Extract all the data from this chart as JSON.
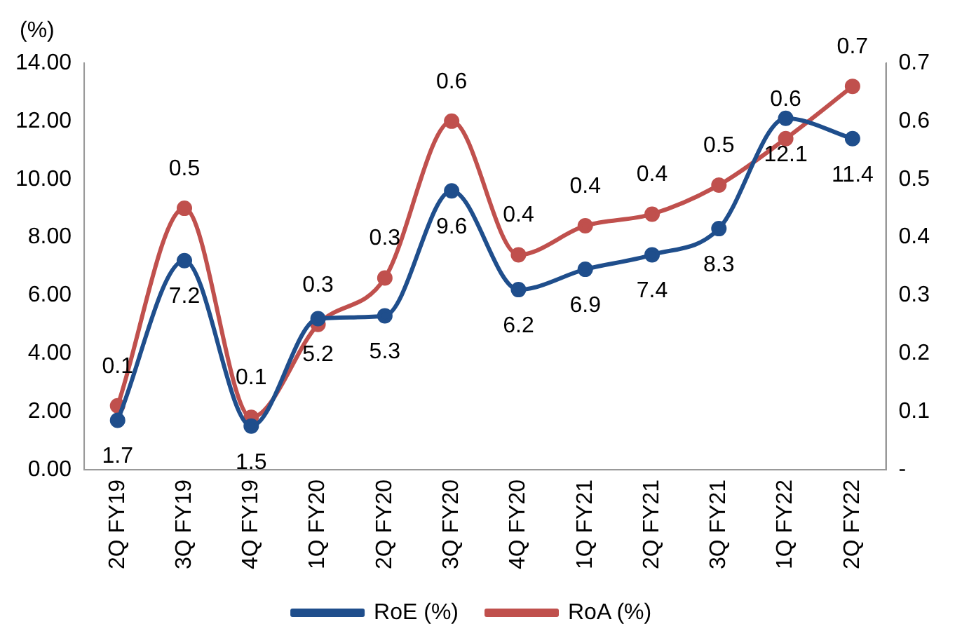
{
  "chart_data": {
    "type": "line",
    "ylabel": "(%)",
    "categories": [
      "2Q FY19",
      "3Q FY19",
      "4Q FY19",
      "1Q FY20",
      "2Q FY20",
      "3Q FY20",
      "4Q FY20",
      "1Q FY21",
      "2Q FY21",
      "3Q FY21",
      "1Q FY22",
      "2Q FY22"
    ],
    "series": [
      {
        "name": "RoE (%)",
        "color": "#1f4e8c",
        "values": [
          1.7,
          7.2,
          1.5,
          5.2,
          5.3,
          9.6,
          6.2,
          6.9,
          7.4,
          8.3,
          12.1,
          11.4
        ],
        "value_labels": [
          "1.7",
          "7.2",
          "1.5",
          "5.2",
          "5.3",
          "9.6",
          "6.2",
          "6.9",
          "7.4",
          "8.3",
          "12.1",
          "11.4"
        ]
      },
      {
        "name": "RoA (%)",
        "color": "#c0504d",
        "axis": "y2",
        "values": [
          0.11,
          0.45,
          0.09,
          0.25,
          0.33,
          0.6,
          0.37,
          0.42,
          0.44,
          0.49,
          0.57,
          0.66
        ],
        "value_labels": [
          "0.1",
          "0.5",
          "0.1",
          "0.3",
          "0.3",
          "0.6",
          "0.4",
          "0.4",
          "0.4",
          "0.5",
          "0.6",
          "0.7"
        ]
      }
    ],
    "ylim": [
      0,
      14
    ],
    "yticks": [
      {
        "value": 0,
        "label": "0.00"
      },
      {
        "value": 2,
        "label": "2.00"
      },
      {
        "value": 4,
        "label": "4.00"
      },
      {
        "value": 6,
        "label": "6.00"
      },
      {
        "value": 8,
        "label": "8.00"
      },
      {
        "value": 10,
        "label": "10.00"
      },
      {
        "value": 12,
        "label": "12.00"
      },
      {
        "value": 14,
        "label": "14.00"
      }
    ],
    "y2lim": [
      0,
      0.7
    ],
    "y2ticks": [
      {
        "value": 0,
        "label": "-"
      },
      0.1,
      0.2,
      0.3,
      0.4,
      0.5,
      0.6,
      0.7
    ],
    "grid": false,
    "legend": "bottom",
    "marker": "circle",
    "line_style": "solid"
  }
}
